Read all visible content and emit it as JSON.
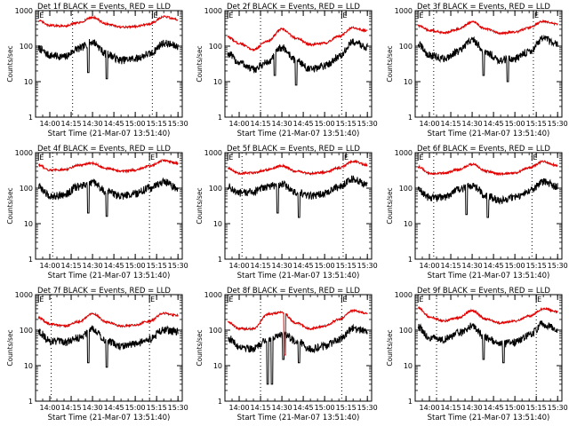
{
  "colors": {
    "events": "#000000",
    "lld": "#e00000",
    "axis": "#000000"
  },
  "chart_data": [
    {
      "type": "line",
      "title": "Det 1f BLACK = Events, RED = LLD",
      "xlabel": "Start Time (21-Mar-07 13:51:40)",
      "ylabel": "Counts/sec",
      "yscale": "log",
      "ylim": [
        1,
        1000
      ],
      "xticks": [
        "14:00",
        "14:15",
        "14:30",
        "14:45",
        "15:00",
        "15:15",
        "15:30"
      ],
      "yticks": [
        "1",
        "10",
        "100",
        "1000"
      ],
      "vlines": [
        "14:16",
        "15:12"
      ],
      "flags": [
        {
          "x": "13:52",
          "label": "E"
        },
        {
          "x": "15:12",
          "label": "E"
        }
      ],
      "series": [
        {
          "name": "BLACK = Events",
          "color": "#000000",
          "x": [
            "13:52",
            "14:00",
            "14:10",
            "14:20",
            "14:30",
            "14:40",
            "14:50",
            "15:00",
            "15:10",
            "15:20",
            "15:30"
          ],
          "y": [
            85,
            55,
            50,
            85,
            130,
            60,
            40,
            45,
            60,
            120,
            100
          ],
          "dips": [
            {
              "x": "14:27",
              "y": 18
            },
            {
              "x": "14:40",
              "y": 12
            }
          ]
        },
        {
          "name": "RED = LLD",
          "color": "#e00000",
          "x": [
            "13:52",
            "14:00",
            "14:10",
            "14:20",
            "14:30",
            "14:40",
            "14:50",
            "15:00",
            "15:10",
            "15:20",
            "15:30"
          ],
          "y": [
            520,
            380,
            370,
            450,
            650,
            420,
            340,
            360,
            420,
            680,
            560
          ]
        }
      ]
    },
    {
      "type": "line",
      "title": "Det 2f BLACK = Events, RED = LLD",
      "xlabel": "Start Time (21-Mar-07 13:51:40)",
      "ylabel": "Counts/sec",
      "yscale": "log",
      "ylim": [
        1,
        1000
      ],
      "xticks": [
        "14:00",
        "14:15",
        "14:30",
        "14:45",
        "15:00",
        "15:15",
        "15:30"
      ],
      "yticks": [
        "1",
        "10",
        "100",
        "1000"
      ],
      "vlines": [
        "14:15",
        "15:12"
      ],
      "flags": [
        {
          "x": "13:52",
          "label": "E"
        },
        {
          "x": "15:12",
          "label": "E"
        }
      ],
      "series": [
        {
          "name": "BLACK = Events",
          "color": "#000000",
          "x": [
            "13:52",
            "14:00",
            "14:10",
            "14:20",
            "14:30",
            "14:40",
            "14:50",
            "15:00",
            "15:10",
            "15:20",
            "15:30"
          ],
          "y": [
            60,
            35,
            22,
            35,
            90,
            40,
            22,
            28,
            50,
            130,
            95
          ],
          "dips": [
            {
              "x": "14:25",
              "y": 15
            },
            {
              "x": "14:40",
              "y": 8
            }
          ]
        },
        {
          "name": "RED = LLD",
          "color": "#e00000",
          "x": [
            "13:52",
            "14:00",
            "14:10",
            "14:20",
            "14:30",
            "14:40",
            "14:50",
            "15:00",
            "15:10",
            "15:20",
            "15:30"
          ],
          "y": [
            180,
            120,
            80,
            140,
            300,
            170,
            110,
            120,
            190,
            330,
            270
          ]
        }
      ]
    },
    {
      "type": "line",
      "title": "Det 3f BLACK = Events, RED = LLD",
      "xlabel": "Start Time (21-Mar-07 13:51:40)",
      "ylabel": "Counts/sec",
      "yscale": "log",
      "ylim": [
        1,
        1000
      ],
      "xticks": [
        "14:00",
        "14:15",
        "14:30",
        "14:45",
        "15:00",
        "15:15",
        "15:30"
      ],
      "yticks": [
        "1",
        "10",
        "100",
        "1000"
      ],
      "vlines": [
        "14:03",
        "15:13"
      ],
      "flags": [
        {
          "x": "13:52",
          "label": "E"
        },
        {
          "x": "15:13",
          "label": "E"
        }
      ],
      "series": [
        {
          "name": "BLACK = Events",
          "color": "#000000",
          "x": [
            "13:52",
            "14:00",
            "14:10",
            "14:20",
            "14:30",
            "14:40",
            "14:50",
            "15:00",
            "15:10",
            "15:20",
            "15:30"
          ],
          "y": [
            110,
            55,
            45,
            70,
            150,
            65,
            40,
            45,
            70,
            160,
            110
          ],
          "dips": [
            {
              "x": "14:38",
              "y": 15
            },
            {
              "x": "14:55",
              "y": 10
            }
          ]
        },
        {
          "name": "RED = LLD",
          "color": "#e00000",
          "x": [
            "13:52",
            "14:00",
            "14:10",
            "14:20",
            "14:30",
            "14:40",
            "14:50",
            "15:00",
            "15:10",
            "15:20",
            "15:30"
          ],
          "y": [
            380,
            280,
            240,
            300,
            480,
            300,
            230,
            250,
            330,
            500,
            420
          ]
        }
      ]
    },
    {
      "type": "line",
      "title": "Det 4f BLACK = Events, RED = LLD",
      "xlabel": "Start Time (21-Mar-07 13:51:40)",
      "ylabel": "Counts/sec",
      "yscale": "log",
      "ylim": [
        1,
        1000
      ],
      "xticks": [
        "14:00",
        "14:15",
        "14:30",
        "14:45",
        "15:00",
        "15:15",
        "15:30"
      ],
      "yticks": [
        "1",
        "10",
        "100",
        "1000"
      ],
      "vlines": [
        "14:02",
        "15:10"
      ],
      "flags": [
        {
          "x": "13:52",
          "label": "E"
        },
        {
          "x": "15:10",
          "label": "E"
        }
      ],
      "series": [
        {
          "name": "BLACK = Events",
          "color": "#000000",
          "x": [
            "13:52",
            "14:00",
            "14:10",
            "14:20",
            "14:30",
            "14:40",
            "14:50",
            "15:00",
            "15:10",
            "15:20",
            "15:30"
          ],
          "y": [
            110,
            60,
            65,
            110,
            140,
            80,
            60,
            70,
            100,
            150,
            100
          ],
          "dips": [
            {
              "x": "14:27",
              "y": 20
            },
            {
              "x": "14:40",
              "y": 16
            }
          ]
        },
        {
          "name": "RED = LLD",
          "color": "#e00000",
          "x": [
            "13:52",
            "14:00",
            "14:10",
            "14:20",
            "14:30",
            "14:40",
            "14:50",
            "15:00",
            "15:10",
            "15:20",
            "15:30"
          ],
          "y": [
            450,
            320,
            330,
            440,
            500,
            360,
            300,
            320,
            420,
            600,
            500
          ]
        }
      ]
    },
    {
      "type": "line",
      "title": "Det 5f BLACK = Events, RED = LLD",
      "xlabel": "Start Time (21-Mar-07 13:51:40)",
      "ylabel": "Counts/sec",
      "yscale": "log",
      "ylim": [
        1,
        1000
      ],
      "xticks": [
        "14:00",
        "14:15",
        "14:30",
        "14:45",
        "15:00",
        "15:15",
        "15:30"
      ],
      "yticks": [
        "1",
        "10",
        "100",
        "1000"
      ],
      "vlines": [
        "14:02",
        "15:13"
      ],
      "flags": [
        {
          "x": "13:52",
          "label": "E"
        },
        {
          "x": "15:13",
          "label": "E"
        }
      ],
      "series": [
        {
          "name": "BLACK = Events",
          "color": "#000000",
          "x": [
            "13:52",
            "14:00",
            "14:10",
            "14:20",
            "14:30",
            "14:40",
            "14:50",
            "15:00",
            "15:10",
            "15:20",
            "15:30"
          ],
          "y": [
            110,
            70,
            80,
            110,
            130,
            75,
            60,
            70,
            110,
            180,
            120
          ],
          "dips": [
            {
              "x": "14:27",
              "y": 20
            },
            {
              "x": "14:42",
              "y": 15
            }
          ]
        },
        {
          "name": "RED = LLD",
          "color": "#e00000",
          "x": [
            "13:52",
            "14:00",
            "14:10",
            "14:20",
            "14:30",
            "14:40",
            "14:50",
            "15:00",
            "15:10",
            "15:20",
            "15:30"
          ],
          "y": [
            370,
            260,
            270,
            330,
            420,
            300,
            260,
            280,
            370,
            560,
            450
          ]
        }
      ]
    },
    {
      "type": "line",
      "title": "Det 6f BLACK = Events, RED = LLD",
      "xlabel": "Start Time (21-Mar-07 13:51:40)",
      "ylabel": "Counts/sec",
      "yscale": "log",
      "ylim": [
        1,
        1000
      ],
      "xticks": [
        "14:00",
        "14:15",
        "14:30",
        "14:45",
        "15:00",
        "15:15",
        "15:30"
      ],
      "yticks": [
        "1",
        "10",
        "100",
        "1000"
      ],
      "vlines": [
        "14:03",
        "15:12"
      ],
      "flags": [
        {
          "x": "13:52",
          "label": "E"
        },
        {
          "x": "15:12",
          "label": "E"
        }
      ],
      "series": [
        {
          "name": "BLACK = Events",
          "color": "#000000",
          "x": [
            "13:52",
            "14:00",
            "14:10",
            "14:20",
            "14:30",
            "14:40",
            "14:50",
            "15:00",
            "15:10",
            "15:20",
            "15:30"
          ],
          "y": [
            90,
            55,
            55,
            90,
            120,
            60,
            45,
            55,
            85,
            150,
            110
          ],
          "dips": [
            {
              "x": "14:26",
              "y": 18
            },
            {
              "x": "14:41",
              "y": 15
            }
          ]
        },
        {
          "name": "RED = LLD",
          "color": "#e00000",
          "x": [
            "13:52",
            "14:00",
            "14:10",
            "14:20",
            "14:30",
            "14:40",
            "14:50",
            "15:00",
            "15:10",
            "15:20",
            "15:30"
          ],
          "y": [
            400,
            260,
            260,
            330,
            470,
            300,
            250,
            270,
            380,
            560,
            430
          ]
        }
      ]
    },
    {
      "type": "line",
      "title": "Det 7f BLACK = Events, RED = LLD",
      "xlabel": "Start Time (21-Mar-07 13:51:40)",
      "ylabel": "Counts/sec",
      "yscale": "log",
      "ylim": [
        1,
        1000
      ],
      "xticks": [
        "14:00",
        "14:15",
        "14:30",
        "14:45",
        "15:00",
        "15:15",
        "15:30"
      ],
      "yticks": [
        "1",
        "10",
        "100",
        "1000"
      ],
      "vlines": [
        "14:01",
        "15:10"
      ],
      "flags": [
        {
          "x": "13:52",
          "label": "E"
        },
        {
          "x": "15:10",
          "label": "E"
        }
      ],
      "series": [
        {
          "name": "BLACK = Events",
          "color": "#000000",
          "x": [
            "13:52",
            "14:00",
            "14:10",
            "14:20",
            "14:30",
            "14:40",
            "14:50",
            "15:00",
            "15:10",
            "15:20",
            "15:30"
          ],
          "y": [
            90,
            50,
            45,
            60,
            110,
            50,
            35,
            40,
            55,
            100,
            90
          ],
          "dips": [
            {
              "x": "14:27",
              "y": 12
            },
            {
              "x": "14:40",
              "y": 9
            }
          ]
        },
        {
          "name": "RED = LLD",
          "color": "#e00000",
          "x": [
            "13:52",
            "14:00",
            "14:10",
            "14:20",
            "14:30",
            "14:40",
            "14:50",
            "15:00",
            "15:10",
            "15:20",
            "15:30"
          ],
          "y": [
            220,
            150,
            130,
            170,
            290,
            170,
            130,
            140,
            180,
            300,
            260
          ]
        }
      ]
    },
    {
      "type": "line",
      "title": "Det 8f BLACK = Events, RED = LLD",
      "xlabel": "Start Time (21-Mar-07 13:51:40)",
      "ylabel": "Counts/sec",
      "yscale": "log",
      "ylim": [
        1,
        1000
      ],
      "xticks": [
        "14:00",
        "14:15",
        "14:30",
        "14:45",
        "15:00",
        "15:15",
        "15:30"
      ],
      "yticks": [
        "1",
        "10",
        "100",
        "1000"
      ],
      "vlines": [
        "14:15",
        "15:12"
      ],
      "flags": [
        {
          "x": "13:52",
          "label": "E"
        },
        {
          "x": "15:12",
          "label": "E"
        }
      ],
      "series": [
        {
          "name": "BLACK = Events",
          "color": "#000000",
          "x": [
            "13:52",
            "14:00",
            "14:10",
            "14:20",
            "14:30",
            "14:40",
            "14:50",
            "15:00",
            "15:10",
            "15:20",
            "15:30"
          ],
          "y": [
            60,
            35,
            30,
            55,
            80,
            50,
            30,
            35,
            55,
            110,
            90
          ],
          "dips": [
            {
              "x": "14:20",
              "y": 3
            },
            {
              "x": "14:23",
              "y": 3
            },
            {
              "x": "14:31",
              "y": 15
            },
            {
              "x": "14:42",
              "y": 12
            }
          ]
        },
        {
          "name": "RED = LLD",
          "color": "#e00000",
          "x": [
            "13:52",
            "14:00",
            "14:10",
            "14:20",
            "14:30",
            "14:40",
            "14:50",
            "15:00",
            "15:10",
            "15:20",
            "15:30"
          ],
          "y": [
            170,
            110,
            110,
            280,
            320,
            160,
            110,
            130,
            200,
            350,
            300
          ],
          "dips": [
            {
              "x": "14:32",
              "y": 20
            }
          ]
        }
      ]
    },
    {
      "type": "line",
      "title": "Det 9f BLACK = Events, RED = LLD",
      "xlabel": "Start Time (21-Mar-07 13:51:40)",
      "ylabel": "Counts/sec",
      "yscale": "log",
      "ylim": [
        1,
        1000
      ],
      "xticks": [
        "14:00",
        "14:15",
        "14:30",
        "14:45",
        "15:00",
        "15:15",
        "15:30"
      ],
      "yticks": [
        "1",
        "10",
        "100",
        "1000"
      ],
      "vlines": [
        "14:05",
        "15:15"
      ],
      "flags": [
        {
          "x": "13:52",
          "label": "E"
        },
        {
          "x": "15:15",
          "label": "E"
        }
      ],
      "series": [
        {
          "name": "BLACK = Events",
          "color": "#000000",
          "x": [
            "13:52",
            "14:00",
            "14:10",
            "14:20",
            "14:30",
            "14:40",
            "14:50",
            "15:00",
            "15:10",
            "15:20",
            "15:30"
          ],
          "y": [
            120,
            60,
            55,
            80,
            130,
            60,
            40,
            45,
            70,
            150,
            100
          ],
          "dips": [
            {
              "x": "14:38",
              "y": 15
            },
            {
              "x": "14:52",
              "y": 12
            }
          ]
        },
        {
          "name": "RED = LLD",
          "color": "#e00000",
          "x": [
            "13:52",
            "14:00",
            "14:10",
            "14:20",
            "14:30",
            "14:40",
            "14:50",
            "15:00",
            "15:10",
            "15:20",
            "15:30"
          ],
          "y": [
            420,
            240,
            180,
            220,
            350,
            200,
            160,
            180,
            250,
            400,
            330
          ]
        }
      ]
    }
  ]
}
